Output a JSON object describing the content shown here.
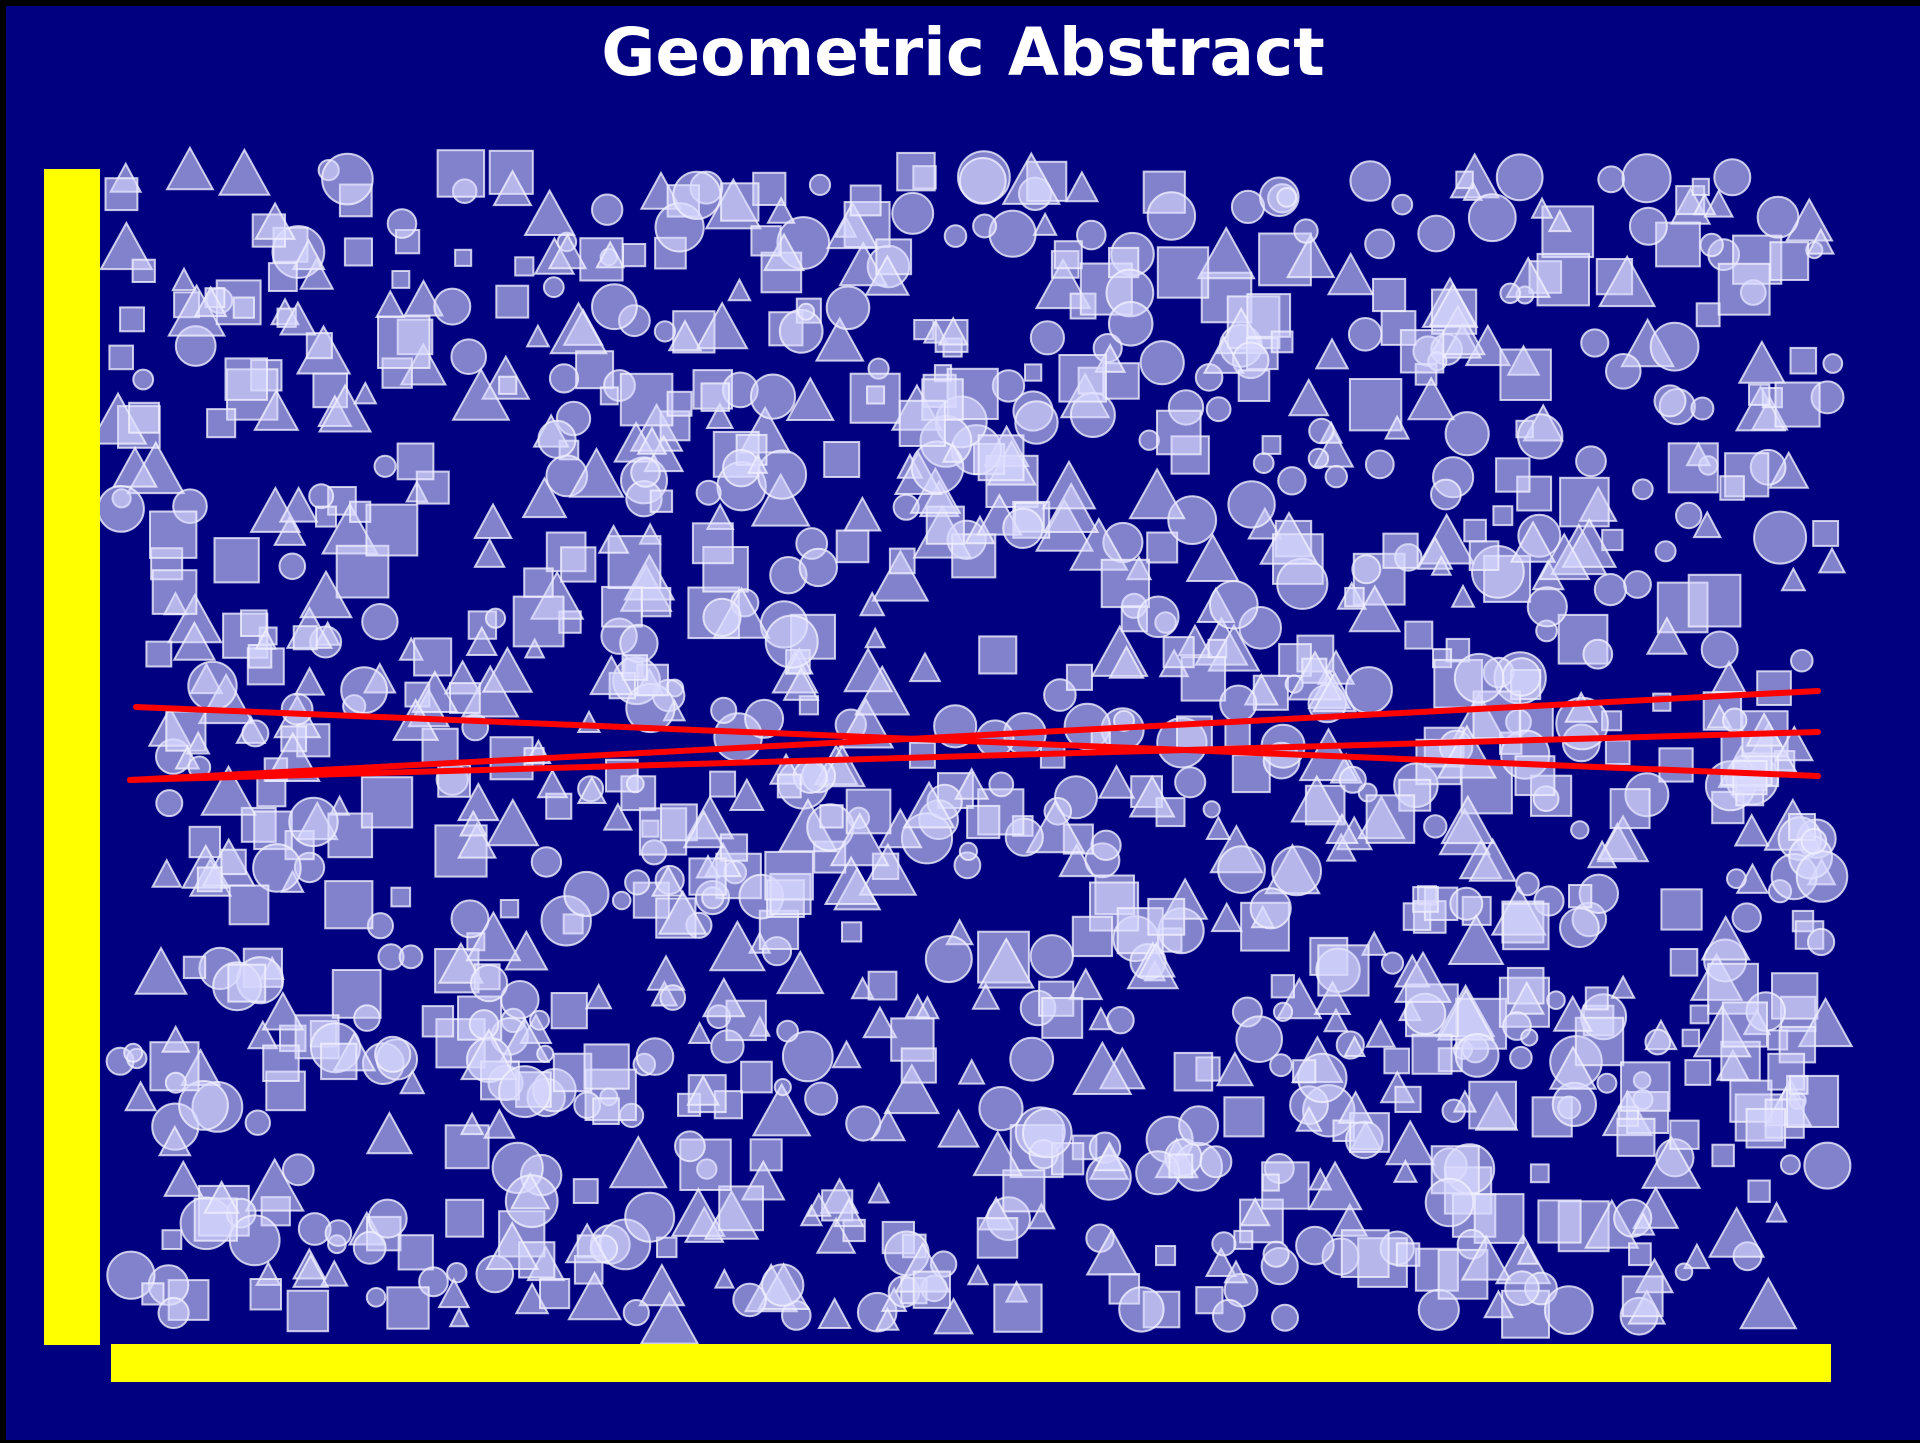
{
  "title": "Geometric Abstract",
  "colors": {
    "background": "#000080",
    "shape_fill": "#d8d8ff",
    "shape_stroke": "#f0f0ff",
    "accent_bars": "#ffff00",
    "lines": "#ff0000",
    "title": "#ffffff"
  },
  "shapes": {
    "kinds": [
      "circle",
      "square",
      "triangle"
    ],
    "count": 1300,
    "opacity": 0.6
  },
  "bars": [
    "vertical-left",
    "horizontal-bottom"
  ],
  "lines_count": 3
}
